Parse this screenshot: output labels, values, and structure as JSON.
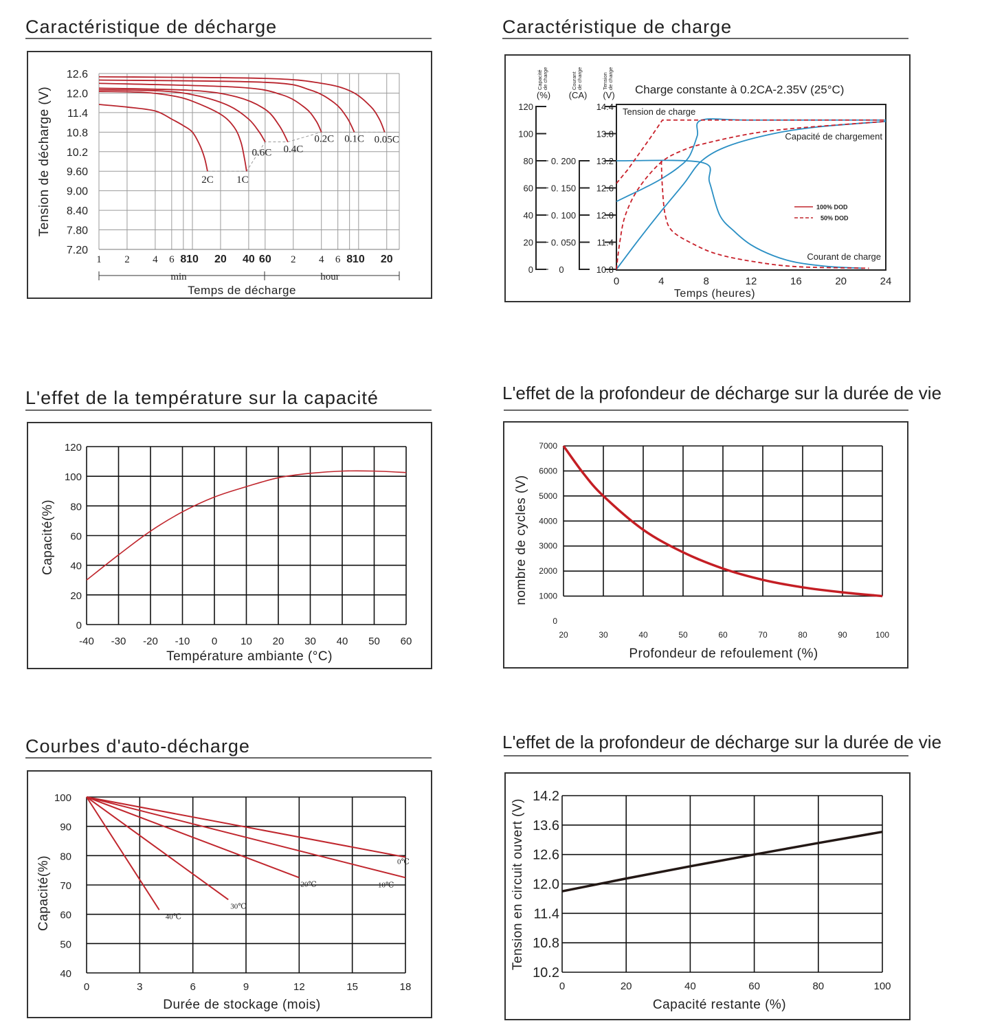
{
  "chart_data": [
    {
      "type": "line",
      "title": "Caractéristique de décharge",
      "ylabel": "Tension de décharge (V)",
      "xlabel": "Temps de décharge",
      "x_scale": "log",
      "x_unit_min": "min",
      "x_unit_hour": "hour",
      "ylim": [
        7.2,
        12.6
      ],
      "grid": true,
      "y_ticks": [
        "12.6",
        "12.0",
        "11.4",
        "10.8",
        "10.2",
        "9.60",
        "9.00",
        "8.40",
        "7.80",
        "7.20"
      ],
      "x_ticks": [
        {
          "label": "1",
          "minutes": 1
        },
        {
          "label": "2",
          "minutes": 2
        },
        {
          "label": "4",
          "minutes": 4
        },
        {
          "label": "6",
          "minutes": 6
        },
        {
          "label": "8",
          "minutes": 8
        },
        {
          "label": "10",
          "minutes": 10
        },
        {
          "label": "20",
          "minutes": 20
        },
        {
          "label": "40",
          "minutes": 40
        },
        {
          "label": "60",
          "minutes": 60
        },
        {
          "label": "2",
          "minutes": 120
        },
        {
          "label": "4",
          "minutes": 240
        },
        {
          "label": "6",
          "minutes": 360
        },
        {
          "label": "8",
          "minutes": 480
        },
        {
          "label": "10",
          "minutes": 600
        },
        {
          "label": "20",
          "minutes": 1200
        }
      ],
      "color": "#b8232c",
      "series": [
        {
          "name": "2C",
          "points": [
            [
              1,
              11.65
            ],
            [
              2,
              11.57
            ],
            [
              4,
              11.45
            ],
            [
              6,
              11.2
            ],
            [
              8,
              11.0
            ],
            [
              10,
              10.8
            ],
            [
              12,
              10.4
            ],
            [
              13.5,
              10.0
            ],
            [
              14.5,
              9.6
            ]
          ]
        },
        {
          "name": "1C",
          "points": [
            [
              1,
              12.05
            ],
            [
              3,
              12.02
            ],
            [
              6,
              11.92
            ],
            [
              10,
              11.75
            ],
            [
              20,
              11.35
            ],
            [
              28,
              10.95
            ],
            [
              33,
              10.5
            ],
            [
              36,
              10.0
            ],
            [
              38,
              9.6
            ]
          ]
        },
        {
          "name": "0.6C",
          "points": [
            [
              1,
              12.1
            ],
            [
              5,
              12.06
            ],
            [
              12,
              11.9
            ],
            [
              25,
              11.6
            ],
            [
              40,
              11.2
            ],
            [
              52,
              10.8
            ],
            [
              60,
              10.5
            ]
          ]
        },
        {
          "name": "0.4C",
          "points": [
            [
              1,
              12.15
            ],
            [
              10,
              12.08
            ],
            [
              30,
              11.88
            ],
            [
              60,
              11.5
            ],
            [
              85,
              11.0
            ],
            [
              105,
              10.5
            ]
          ]
        },
        {
          "name": "0.2C",
          "points": [
            [
              1,
              12.3
            ],
            [
              30,
              12.18
            ],
            [
              90,
              11.95
            ],
            [
              160,
              11.55
            ],
            [
              210,
              11.15
            ],
            [
              240,
              10.8
            ]
          ]
        },
        {
          "name": "0.1C",
          "points": [
            [
              1,
              12.4
            ],
            [
              60,
              12.33
            ],
            [
              180,
              12.1
            ],
            [
              330,
              11.7
            ],
            [
              450,
              11.25
            ],
            [
              540,
              10.8
            ]
          ]
        },
        {
          "name": "0.05C",
          "points": [
            [
              1,
              12.5
            ],
            [
              60,
              12.45
            ],
            [
              240,
              12.3
            ],
            [
              500,
              12.05
            ],
            [
              800,
              11.6
            ],
            [
              1000,
              11.2
            ],
            [
              1140,
              10.8
            ]
          ]
        }
      ],
      "cutoff_line": [
        [
          14.5,
          9.6
        ],
        [
          38,
          9.6
        ],
        [
          60,
          10.5
        ],
        [
          105,
          10.5
        ],
        [
          240,
          10.8
        ],
        [
          540,
          10.8
        ],
        [
          1140,
          10.8
        ]
      ]
    },
    {
      "type": "line",
      "title": "Caractéristique de charge",
      "subtitle": "Charge constante à 0.2CA-2.35V (25°C)",
      "xlabel": "Temps (heures)",
      "xlim": [
        0,
        24
      ],
      "x_ticks": [
        "0",
        "4",
        "8",
        "12",
        "16",
        "20",
        "24"
      ],
      "axes": [
        {
          "label_line1": "Capacité",
          "label_line2": "de charge",
          "unit": "(%)",
          "range": [
            0,
            120
          ],
          "ticks": [
            "120",
            "100",
            "80",
            "60",
            "40",
            "20",
            "0"
          ]
        },
        {
          "label_line1": "Courant",
          "label_line2": "de charge",
          "unit": "(CA)",
          "range": [
            0,
            0.3
          ],
          "ticks": [
            "0. 200",
            "0. 150",
            "0. 100",
            "0. 050",
            "0"
          ]
        },
        {
          "label_line1": "Tension",
          "label_line2": "de charge",
          "unit": "(V)",
          "range": [
            10.8,
            14.4
          ],
          "ticks": [
            "14.4",
            "13.8",
            "13.2",
            "12.6",
            "12.0",
            "11.4",
            "10.8"
          ]
        }
      ],
      "annotations": {
        "voltage": "Tension de charge",
        "capacity": "Capacité de chargement",
        "current": "Courant de charge"
      },
      "legend": [
        {
          "label": "100% DOD",
          "style": "solid",
          "color": "#c0262d"
        },
        {
          "label": "50% DOD",
          "style": "dashed",
          "color": "#c0262d"
        }
      ],
      "colors": {
        "dod100": "#2a8fc4",
        "dod50": "#c8202a"
      },
      "series": [
        {
          "dod": "100% DOD",
          "quantity": "voltage",
          "points": [
            [
              0,
              12.3
            ],
            [
              1,
              12.42
            ],
            [
              2.5,
              12.6
            ],
            [
              4,
              12.8
            ],
            [
              5.5,
              13.05
            ],
            [
              6.5,
              13.3
            ],
            [
              7.2,
              13.75
            ],
            [
              7.6,
              14.1
            ],
            [
              12,
              14.1
            ],
            [
              24,
              14.1
            ]
          ]
        },
        {
          "dod": "100% DOD",
          "quantity": "capacity",
          "points": [
            [
              0,
              0
            ],
            [
              2,
              22
            ],
            [
              4,
              43
            ],
            [
              6,
              63
            ],
            [
              7.6,
              80
            ],
            [
              10,
              91
            ],
            [
              14,
              100
            ],
            [
              18,
              105
            ],
            [
              24,
              109
            ]
          ]
        },
        {
          "dod": "100% DOD",
          "quantity": "current",
          "points": [
            [
              0,
              0.2
            ],
            [
              7.6,
              0.197
            ],
            [
              8.3,
              0.16
            ],
            [
              9.2,
              0.1
            ],
            [
              10.5,
              0.07
            ],
            [
              12,
              0.045
            ],
            [
              14,
              0.025
            ],
            [
              16,
              0.013
            ],
            [
              19,
              0.005
            ],
            [
              22,
              0.002
            ]
          ]
        },
        {
          "dod": "50% DOD",
          "quantity": "voltage",
          "points": [
            [
              0,
              12.7
            ],
            [
              1,
              13.0
            ],
            [
              2,
              13.35
            ],
            [
              3,
              13.7
            ],
            [
              4.1,
              14.1
            ],
            [
              24,
              14.1
            ]
          ]
        },
        {
          "dod": "50% DOD",
          "quantity": "capacity",
          "points": [
            [
              0,
              0
            ],
            [
              0.3,
              20
            ],
            [
              0.8,
              40
            ],
            [
              2,
              60
            ],
            [
              4,
              79
            ],
            [
              6,
              88
            ],
            [
              8,
              93
            ],
            [
              12,
              100
            ],
            [
              16,
              104
            ],
            [
              24,
              109
            ]
          ]
        },
        {
          "dod": "50% DOD",
          "quantity": "current",
          "points": [
            [
              4,
              0.2
            ],
            [
              4.1,
              0.15
            ],
            [
              4.35,
              0.1
            ],
            [
              5,
              0.07
            ],
            [
              7,
              0.045
            ],
            [
              9,
              0.028
            ],
            [
              12,
              0.015
            ],
            [
              16,
              0.005
            ],
            [
              22.5,
              0.002
            ]
          ]
        }
      ]
    },
    {
      "type": "line",
      "title": "L'effet de la température sur la capacité",
      "ylabel": "Capacité(%)",
      "xlabel": "Température ambiante (°C)",
      "xlim": [
        -40,
        60
      ],
      "ylim": [
        0,
        120
      ],
      "grid": true,
      "x_ticks": [
        "-40",
        "-30",
        "-20",
        "-10",
        "0",
        "10",
        "20",
        "30",
        "40",
        "50",
        "60"
      ],
      "y_ticks": [
        "120",
        "100",
        "80",
        "60",
        "40",
        "20",
        "0"
      ],
      "color": "#c0262d",
      "points": [
        [
          -40,
          30
        ],
        [
          -30,
          47
        ],
        [
          -20,
          63
        ],
        [
          -10,
          76
        ],
        [
          0,
          86
        ],
        [
          10,
          93
        ],
        [
          20,
          99
        ],
        [
          30,
          102
        ],
        [
          40,
          103.5
        ],
        [
          50,
          103.5
        ],
        [
          60,
          102.5
        ]
      ]
    },
    {
      "type": "line",
      "title": "L'effet de la profondeur de décharge sur la durée de vie",
      "ylabel": "nombre de cycles (V)",
      "xlabel": "Profondeur de refoulement (%)",
      "xlim": [
        20,
        100
      ],
      "ylim": [
        0,
        7000
      ],
      "grid": true,
      "x_ticks": [
        "20",
        "30",
        "40",
        "50",
        "60",
        "70",
        "80",
        "90",
        "100"
      ],
      "y_ticks": [
        "7000",
        "6000",
        "5000",
        "4000",
        "3000",
        "2000",
        "1000",
        "0"
      ],
      "color": "#c41e24",
      "points": [
        [
          20,
          7000
        ],
        [
          25,
          5900
        ],
        [
          30,
          5000
        ],
        [
          40,
          3650
        ],
        [
          50,
          2750
        ],
        [
          60,
          2100
        ],
        [
          70,
          1650
        ],
        [
          80,
          1350
        ],
        [
          90,
          1150
        ],
        [
          100,
          1000
        ]
      ]
    },
    {
      "type": "line",
      "title": "Courbes d'auto-décharge",
      "ylabel": "Capacité(%)",
      "xlabel": "Durée de stockage (mois)",
      "xlim": [
        0,
        18
      ],
      "ylim": [
        40,
        100
      ],
      "grid": true,
      "x_ticks": [
        "0",
        "3",
        "6",
        "9",
        "12",
        "15",
        "18"
      ],
      "y_ticks": [
        "100",
        "90",
        "80",
        "70",
        "60",
        "50",
        "40"
      ],
      "color": "#c0262d",
      "series": [
        {
          "name": "0℃",
          "points": [
            [
              0,
              100
            ],
            [
              18,
              79.5
            ]
          ]
        },
        {
          "name": "10℃",
          "points": [
            [
              0,
              100
            ],
            [
              18,
              72.5
            ]
          ]
        },
        {
          "name": "20℃",
          "points": [
            [
              0,
              100
            ],
            [
              12,
              72.5
            ]
          ]
        },
        {
          "name": "30℃",
          "points": [
            [
              0,
              100
            ],
            [
              8,
              65
            ]
          ]
        },
        {
          "name": "40℃",
          "points": [
            [
              0,
              100
            ],
            [
              4.1,
              61.5
            ]
          ]
        }
      ]
    },
    {
      "type": "line",
      "title": "L'effet de la profondeur de décharge sur la durée de vie",
      "ylabel": "Tension en circuit ouvert (V)",
      "xlabel": "Capacité restante (%)",
      "xlim": [
        0,
        100
      ],
      "grid": true,
      "x_ticks": [
        "0",
        "20",
        "40",
        "60",
        "80",
        "100"
      ],
      "y_ticks": [
        "14.2",
        "13.6",
        "12.6",
        "12.0",
        "11.4",
        "10.8",
        "10.2"
      ],
      "color": "#231815",
      "points": [
        [
          0,
          11.85
        ],
        [
          20,
          12.11
        ],
        [
          40,
          12.36
        ],
        [
          60,
          12.6
        ],
        [
          80,
          12.99
        ],
        [
          100,
          13.37
        ]
      ]
    }
  ]
}
